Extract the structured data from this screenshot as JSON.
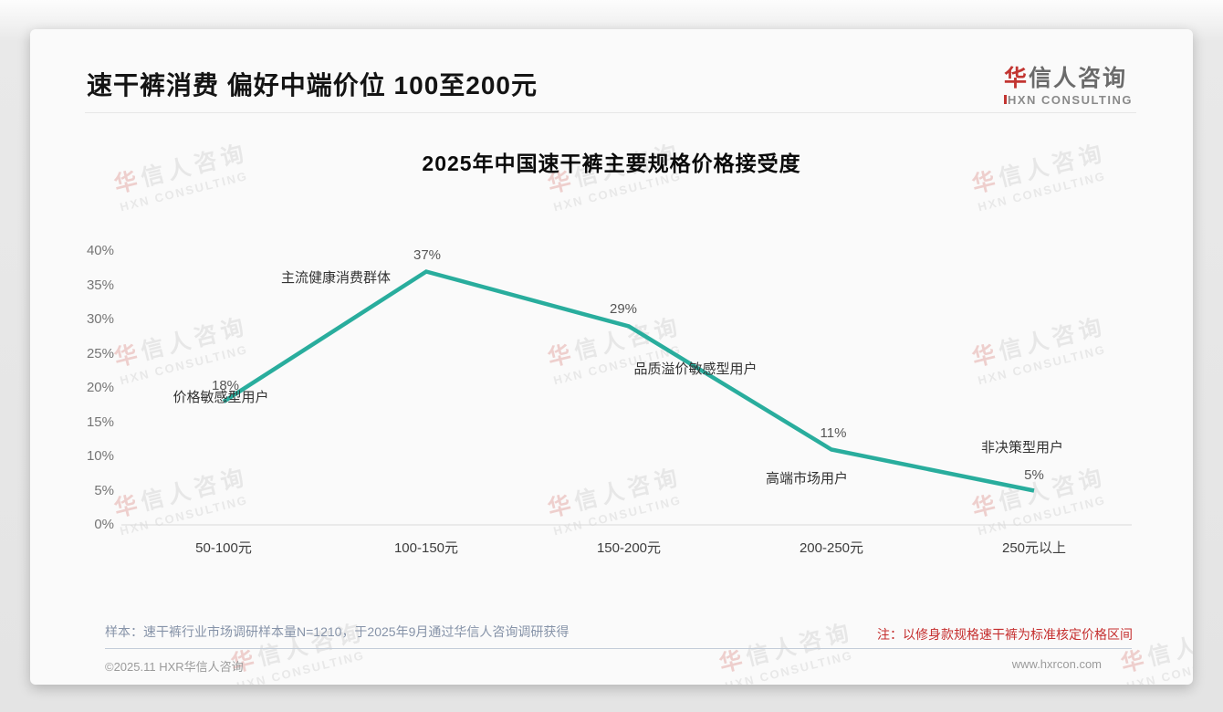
{
  "page": {
    "title": "速干裤消费 偏好中端价位 100至200元",
    "logo": {
      "zh_first": "华",
      "zh_rest": "信人咨询",
      "en": "HXN CONSULTING"
    },
    "watermark": {
      "zh": "华信人咨询",
      "en": "HXN CONSULTING"
    },
    "notes": {
      "sample": "样本：速干裤行业市场调研样本量N=1210，于2025年9月通过华信人咨询调研获得",
      "red_note": "注：以修身款规格速干裤为标准核定价格区间"
    },
    "footer": {
      "copyright": "©2025.11 HXR华信人咨询",
      "website": "www.hxrcon.com"
    },
    "colors": {
      "brand_red": "#c23531",
      "note_red": "#c52f2f",
      "line_teal": "#29ad9d"
    }
  },
  "chart_data": {
    "type": "line",
    "title": "2025年中国速干裤主要规格价格接受度",
    "categories": [
      "50-100元",
      "100-150元",
      "150-200元",
      "200-250元",
      "250元以上"
    ],
    "values": [
      18,
      37,
      29,
      11,
      5
    ],
    "data_labels": [
      "18%",
      "37%",
      "29%",
      "11%",
      "5%"
    ],
    "annotations": [
      "价格敏感型用户",
      "主流健康消费群体",
      "品质溢价敏感型用户",
      "高端市场用户",
      "非决策型用户"
    ],
    "y_ticks": [
      "40%",
      "35%",
      "30%",
      "25%",
      "20%",
      "15%",
      "10%",
      "5%",
      "0%"
    ],
    "ylim": [
      0,
      40
    ],
    "xlabel": "",
    "ylabel": "",
    "grid": false,
    "legend": false,
    "line_color": "#29ad9d"
  }
}
